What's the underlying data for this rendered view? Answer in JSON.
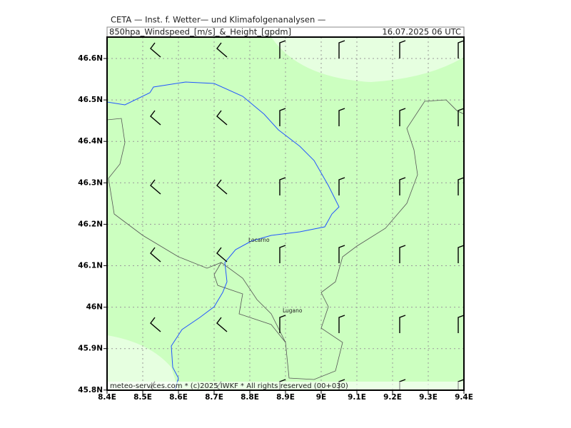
{
  "header": {
    "title": "CETA — Inst. f. Wetter— und Klimafolgenanalysen —",
    "product": "850hpa_Windspeed_[m/s]_&_Height_[gpdm]",
    "valid": "16.07.2025 06 UTC"
  },
  "map": {
    "lat_labels": [
      "46.6N",
      "46.5N",
      "46.4N",
      "46.3N",
      "46.2N",
      "46.1N",
      "46N",
      "45.9N",
      "45.8N"
    ],
    "lon_labels": [
      "8.4E",
      "8.5E",
      "8.6E",
      "8.7E",
      "8.8E",
      "8.9E",
      "9E",
      "9.1E",
      "9.2E",
      "9.3E",
      "9.4E"
    ],
    "places": [
      "Locarno",
      "Lugano"
    ]
  },
  "footer": "meteo-services.com * (c)2025 IWKF * All rights reserved (00+030)"
}
